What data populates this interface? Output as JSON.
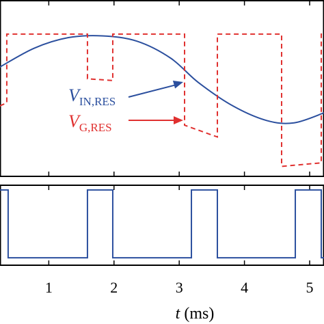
{
  "chart_data": [
    {
      "type": "line",
      "xlim": [
        0.252,
        5.22
      ],
      "ylim": [
        -1.65,
        1.35
      ],
      "series": [
        {
          "name": "IN,RES",
          "color": "#2b4f9e",
          "dash": false,
          "smooth": true,
          "x": [
            0.25,
            0.776,
            1.3,
            1.82,
            2.35,
            2.87,
            3.29,
            3.82,
            4.34,
            4.76,
            5.22
          ],
          "values": [
            0.21,
            0.53,
            0.71,
            0.74,
            0.65,
            0.36,
            -0.05,
            -0.45,
            -0.7,
            -0.74,
            -0.57
          ]
        },
        {
          "name": "G,RES",
          "color": "#e0302f",
          "dash": true,
          "smooth": false,
          "x": [
            0.25,
            0.356,
            0.356,
            1.593,
            1.593,
            1.981,
            1.981,
            3.082,
            3.082,
            3.585,
            3.585,
            4.57,
            4.57,
            5.178,
            5.178,
            5.22
          ],
          "values": [
            -0.45,
            -0.4,
            0.77,
            0.77,
            0.01,
            -0.02,
            0.77,
            0.77,
            -0.78,
            -0.98,
            0.77,
            0.77,
            -1.48,
            -1.42,
            0.77,
            0.77
          ]
        }
      ],
      "annotations": [
        {
          "text": "V",
          "subscript": "IN,RES",
          "color": "#2b4f9e"
        },
        {
          "text": "V",
          "subscript": "G,RES",
          "color": "#e0302f"
        }
      ],
      "xticks": [
        1,
        2,
        3,
        4,
        5
      ]
    },
    {
      "type": "line",
      "xlim": [
        0.252,
        5.22
      ],
      "ylim": [
        -0.11,
        1.08
      ],
      "series": [
        {
          "color": "#2b4f9e",
          "dash": false,
          "smooth": false,
          "x": [
            0.25,
            0.377,
            0.377,
            1.593,
            1.593,
            1.981,
            1.981,
            3.187,
            3.187,
            3.585,
            3.585,
            4.78,
            4.78,
            5.178,
            5.178,
            5.22
          ],
          "values": [
            1,
            1,
            0,
            0,
            1,
            1,
            0,
            0,
            1,
            1,
            0,
            0,
            1,
            1,
            0,
            0
          ]
        }
      ],
      "xticks": [
        1,
        2,
        3,
        4,
        5
      ],
      "x_label_var": "t",
      "x_label_unit": "(ms)"
    }
  ]
}
